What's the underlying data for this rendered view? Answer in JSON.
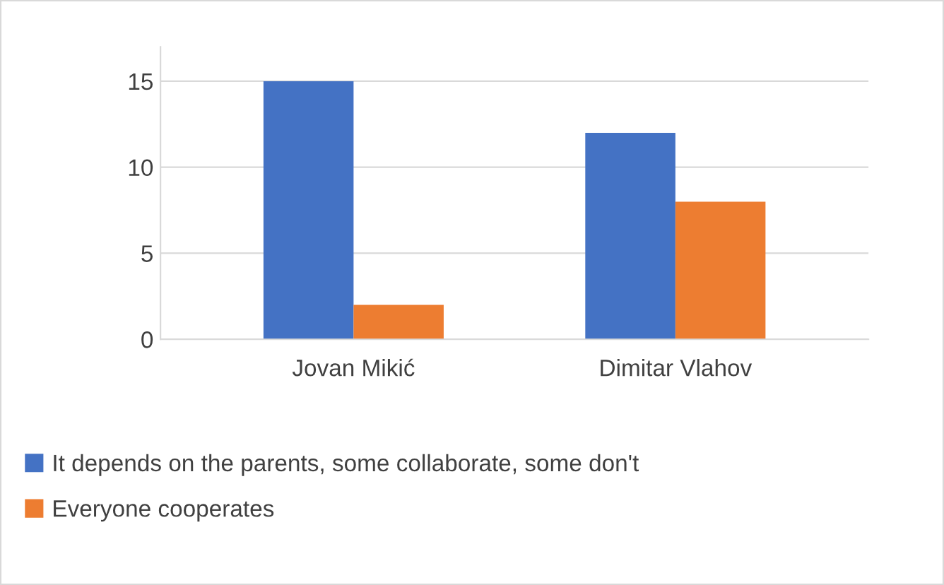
{
  "chart_data": {
    "type": "bar",
    "categories": [
      "Jovan Mikić",
      "Dimitar Vlahov"
    ],
    "series": [
      {
        "name": "It depends on the parents, some collaborate, some don't",
        "color": "#4472c4",
        "values": [
          15,
          12
        ]
      },
      {
        "name": "Everyone cooperates",
        "color": "#ed7d31",
        "values": [
          2,
          8
        ]
      }
    ],
    "ylim": [
      0,
      17
    ],
    "yticks": [
      0,
      5,
      10,
      15
    ],
    "grid": "y",
    "legend": "bottom"
  }
}
